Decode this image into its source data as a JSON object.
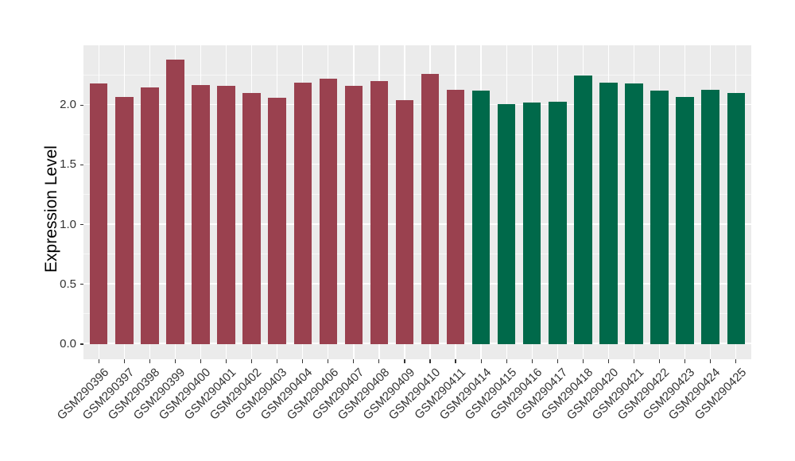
{
  "chart_data": {
    "type": "bar",
    "title": "",
    "xlabel": "",
    "ylabel": "Expression Level",
    "ylim": [
      0,
      2.5
    ],
    "yticks_major": [
      0.0,
      0.5,
      1.0,
      1.5,
      2.0
    ],
    "yticks_minor": [
      0.25,
      0.75,
      1.25,
      1.75,
      2.25
    ],
    "ytick_decimals": 1,
    "grid": "on",
    "legend": "none",
    "categories": [
      "GSM290396",
      "GSM290397",
      "GSM290398",
      "GSM290399",
      "GSM290400",
      "GSM290401",
      "GSM290402",
      "GSM290403",
      "GSM290404",
      "GSM290406",
      "GSM290407",
      "GSM290408",
      "GSM290409",
      "GSM290410",
      "GSM290411",
      "GSM290414",
      "GSM290415",
      "GSM290416",
      "GSM290417",
      "GSM290418",
      "GSM290420",
      "GSM290421",
      "GSM290422",
      "GSM290423",
      "GSM290424",
      "GSM290425"
    ],
    "values": [
      2.18,
      2.07,
      2.15,
      2.38,
      2.17,
      2.16,
      2.1,
      2.06,
      2.19,
      2.22,
      2.16,
      2.2,
      2.04,
      2.26,
      2.13,
      2.12,
      2.01,
      2.02,
      2.03,
      2.25,
      2.19,
      2.18,
      2.12,
      2.07,
      2.13,
      2.1
    ],
    "groups": [
      0,
      0,
      0,
      0,
      0,
      0,
      0,
      0,
      0,
      0,
      0,
      0,
      0,
      0,
      0,
      1,
      1,
      1,
      1,
      1,
      1,
      1,
      1,
      1,
      1,
      1
    ],
    "group_colors": [
      "#9A414F",
      "#00694A"
    ],
    "colors": {
      "panel_background": "#EBEBEB",
      "grid": "#FFFFFF",
      "tick_mark": "#333333",
      "axis_text": "#333333",
      "axis_title": "#000000",
      "figure_background": "#FFFFFF"
    }
  }
}
